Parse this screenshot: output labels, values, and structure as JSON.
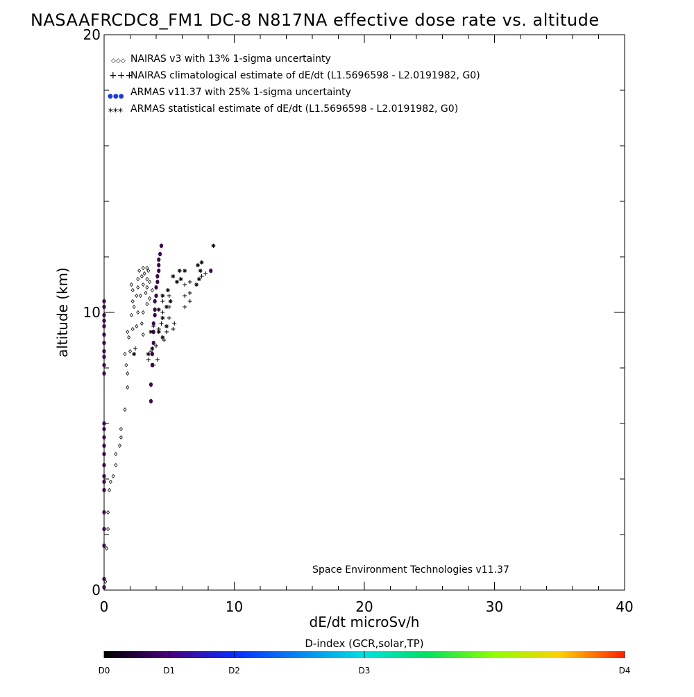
{
  "chart_data": {
    "type": "scatter",
    "title": "NASAAFRCDC8_FM1 DC-8   N817NA effective dose rate vs. altitude",
    "xlabel": "dE/dt microSv/h",
    "ylabel": "altitude (km)",
    "xlim": [
      0,
      40
    ],
    "ylim": [
      0,
      20
    ],
    "x_ticks": [
      "0",
      "10",
      "20",
      "30",
      "40"
    ],
    "y_ticks": [
      "0",
      "10",
      "20"
    ],
    "legend_position": "top-left",
    "legend": [
      {
        "marker": "diamond",
        "symbols": "◇◇◇",
        "text": "NAIRAS v3 with 13% 1-sigma uncertainty"
      },
      {
        "marker": "plus",
        "symbols": "+++",
        "text": "NAIRAS climatological estimate of dE/dt (L1.5696598 - L2.0191982, G0)"
      },
      {
        "marker": "dot",
        "symbols": "●●●",
        "text": "ARMAS v11.37 with 25% 1-sigma uncertainty"
      },
      {
        "marker": "asterisk",
        "symbols": "***",
        "text": "ARMAS statistical estimate of dE/dt (L1.5696598 - L2.0191982, G0)"
      }
    ],
    "annotation": "Space Environment Technologies v11.37",
    "colorbar": {
      "title": "D-index (GCR,solar,TP)",
      "labels": [
        {
          "text": "D0",
          "pos": 0.0
        },
        {
          "text": "D1",
          "pos": 0.125
        },
        {
          "text": "D2",
          "pos": 0.25
        },
        {
          "text": "D3",
          "pos": 0.5
        },
        {
          "text": "D4",
          "pos": 1.0
        }
      ]
    },
    "series": [
      {
        "name": "NAIRAS v3 with 13% 1-sigma uncertainty",
        "marker": "diamond",
        "color": "#000000",
        "points": [
          [
            0.1,
            0.3
          ],
          [
            0.2,
            1.5
          ],
          [
            0.3,
            2.2
          ],
          [
            0.3,
            2.8
          ],
          [
            0.4,
            3.6
          ],
          [
            0.5,
            3.9
          ],
          [
            0.7,
            4.1
          ],
          [
            0.9,
            4.5
          ],
          [
            0.9,
            4.9
          ],
          [
            1.2,
            5.2
          ],
          [
            1.3,
            5.5
          ],
          [
            1.3,
            5.8
          ],
          [
            1.6,
            6.5
          ],
          [
            1.8,
            7.3
          ],
          [
            1.8,
            7.8
          ],
          [
            1.7,
            8.1
          ],
          [
            1.6,
            8.5
          ],
          [
            2.0,
            8.6
          ],
          [
            1.9,
            9.1
          ],
          [
            1.8,
            9.3
          ],
          [
            2.2,
            9.4
          ],
          [
            2.5,
            9.5
          ],
          [
            2.9,
            9.6
          ],
          [
            3.0,
            9.2
          ],
          [
            2.1,
            9.9
          ],
          [
            2.3,
            10.2
          ],
          [
            2.6,
            10.0
          ],
          [
            3.0,
            10.0
          ],
          [
            3.3,
            10.3
          ],
          [
            2.2,
            10.4
          ],
          [
            2.5,
            10.6
          ],
          [
            2.8,
            10.6
          ],
          [
            3.2,
            10.7
          ],
          [
            3.5,
            10.5
          ],
          [
            2.2,
            10.8
          ],
          [
            2.6,
            10.9
          ],
          [
            3.0,
            11.0
          ],
          [
            3.3,
            10.9
          ],
          [
            2.1,
            11.0
          ],
          [
            2.6,
            11.2
          ],
          [
            2.9,
            11.3
          ],
          [
            3.3,
            11.2
          ],
          [
            2.7,
            11.5
          ],
          [
            3.1,
            11.4
          ],
          [
            3.4,
            11.5
          ],
          [
            3.0,
            11.6
          ],
          [
            3.3,
            11.6
          ],
          [
            3.5,
            11.1
          ],
          [
            3.7,
            10.8
          ]
        ]
      },
      {
        "name": "NAIRAS climatological estimate of dE/dt (L1.5696598 - L2.0191982, G0)",
        "marker": "plus",
        "color": "#000000",
        "points": [
          [
            2.4,
            8.7
          ],
          [
            3.4,
            8.3
          ],
          [
            3.8,
            8.1
          ],
          [
            4.1,
            8.3
          ],
          [
            3.6,
            8.6
          ],
          [
            4.0,
            8.8
          ],
          [
            4.6,
            9.0
          ],
          [
            4.2,
            9.4
          ],
          [
            4.8,
            9.3
          ],
          [
            5.3,
            9.4
          ],
          [
            3.8,
            9.5
          ],
          [
            4.4,
            9.6
          ],
          [
            5.0,
            9.8
          ],
          [
            5.4,
            9.6
          ],
          [
            4.5,
            10.0
          ],
          [
            5.0,
            10.2
          ],
          [
            4.5,
            10.4
          ],
          [
            5.0,
            10.6
          ],
          [
            6.2,
            10.2
          ],
          [
            6.6,
            10.4
          ],
          [
            6.2,
            10.6
          ],
          [
            6.6,
            10.7
          ],
          [
            6.2,
            11.0
          ],
          [
            6.6,
            11.1
          ],
          [
            7.5,
            11.3
          ],
          [
            7.8,
            11.4
          ]
        ]
      },
      {
        "name": "ARMAS v11.37 with 25% 1-sigma uncertainty",
        "marker": "dot",
        "color": "#3a0a4a",
        "points": [
          [
            0.0,
            0.1
          ],
          [
            0.0,
            0.4
          ],
          [
            0.0,
            1.6
          ],
          [
            0.0,
            2.2
          ],
          [
            0.0,
            2.8
          ],
          [
            0.0,
            3.6
          ],
          [
            0.0,
            3.9
          ],
          [
            0.0,
            4.1
          ],
          [
            0.0,
            4.5
          ],
          [
            0.0,
            4.9
          ],
          [
            0.0,
            5.2
          ],
          [
            0.0,
            5.5
          ],
          [
            0.0,
            5.8
          ],
          [
            0.0,
            6.0
          ],
          [
            0.0,
            7.8
          ],
          [
            0.0,
            8.1
          ],
          [
            0.0,
            8.4
          ],
          [
            0.0,
            8.6
          ],
          [
            0.0,
            8.9
          ],
          [
            0.0,
            9.2
          ],
          [
            0.0,
            9.5
          ],
          [
            0.0,
            9.7
          ],
          [
            0.0,
            9.9
          ],
          [
            0.0,
            10.2
          ],
          [
            0.0,
            10.4
          ],
          [
            3.6,
            6.8
          ],
          [
            3.6,
            7.4
          ],
          [
            3.7,
            8.1
          ],
          [
            3.7,
            8.5
          ],
          [
            3.8,
            8.9
          ],
          [
            3.8,
            9.3
          ],
          [
            3.8,
            9.6
          ],
          [
            3.9,
            9.9
          ],
          [
            3.9,
            10.1
          ],
          [
            3.9,
            10.4
          ],
          [
            4.0,
            10.6
          ],
          [
            4.0,
            10.9
          ],
          [
            4.1,
            11.1
          ],
          [
            4.1,
            11.3
          ],
          [
            4.2,
            11.5
          ],
          [
            4.2,
            11.7
          ],
          [
            4.2,
            11.9
          ],
          [
            4.3,
            12.1
          ],
          [
            4.4,
            12.4
          ],
          [
            8.2,
            11.5
          ]
        ]
      },
      {
        "name": "ARMAS statistical estimate of dE/dt (L1.5696598 - L2.0191982, G0)",
        "marker": "asterisk",
        "color": "#000000",
        "points": [
          [
            2.3,
            8.5
          ],
          [
            3.4,
            8.5
          ],
          [
            3.7,
            8.7
          ],
          [
            3.6,
            9.3
          ],
          [
            4.2,
            9.3
          ],
          [
            4.5,
            9.1
          ],
          [
            4.8,
            9.5
          ],
          [
            4.5,
            9.8
          ],
          [
            4.2,
            10.1
          ],
          [
            4.8,
            10.2
          ],
          [
            5.1,
            10.4
          ],
          [
            4.5,
            10.6
          ],
          [
            4.9,
            10.8
          ],
          [
            5.6,
            11.1
          ],
          [
            5.9,
            11.2
          ],
          [
            5.3,
            11.3
          ],
          [
            5.8,
            11.5
          ],
          [
            6.2,
            11.5
          ],
          [
            7.1,
            11.0
          ],
          [
            7.3,
            11.2
          ],
          [
            7.4,
            11.5
          ],
          [
            7.2,
            11.7
          ],
          [
            7.5,
            11.8
          ],
          [
            8.4,
            12.4
          ]
        ]
      }
    ]
  }
}
